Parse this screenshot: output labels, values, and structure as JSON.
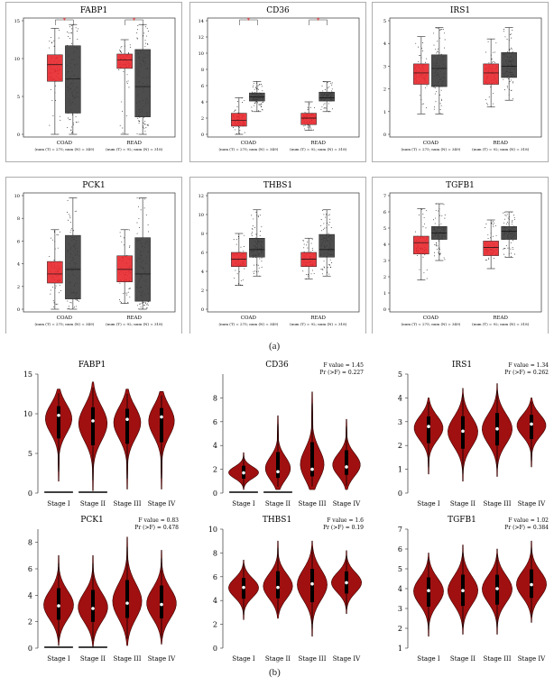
{
  "figure": {
    "label_a": "(a)",
    "label_b": "(b)"
  },
  "colors": {
    "tumor": "#e8262b",
    "normal": "#3a3a3a",
    "violin": "#a01010",
    "violin_edge": "#3a0000",
    "star": "#e8262b"
  },
  "chart_data": [
    {
      "type": "box",
      "title": "FABP1",
      "ylim": [
        0,
        15
      ],
      "yticks": [
        0,
        5,
        10,
        15
      ],
      "categories": [
        "COAD",
        "READ"
      ],
      "sublabels": [
        "(num (T) = 275; num (N) = 349)",
        "(num (T) = 92; num (N) = 318)"
      ],
      "significance": [
        true,
        true
      ],
      "series": [
        {
          "group": "T",
          "values": [
            [
              0,
              7,
              9.2,
              10.5,
              14
            ],
            [
              0,
              8.7,
              9.8,
              10.6,
              12.5
            ]
          ]
        },
        {
          "group": "N",
          "values": [
            [
              0,
              2.8,
              7.3,
              11.7,
              14.5
            ],
            [
              0,
              2.3,
              6.3,
              11.2,
              14.5
            ]
          ]
        }
      ]
    },
    {
      "type": "box",
      "title": "CD36",
      "ylim": [
        0,
        14
      ],
      "yticks": [
        0,
        2,
        4,
        6,
        8,
        10,
        12,
        14
      ],
      "categories": [
        "COAD",
        "READ"
      ],
      "sublabels": [
        "(num (T) = 275; num (N) = 349)",
        "(num (T) = 92; num (N) = 318)"
      ],
      "significance": [
        true,
        true
      ],
      "series": [
        {
          "group": "T",
          "values": [
            [
              0,
              1,
              1.7,
              2.6,
              4.5
            ],
            [
              0.5,
              1.2,
              2,
              2.6,
              4
            ]
          ]
        },
        {
          "group": "N",
          "values": [
            [
              2.8,
              4.1,
              4.6,
              5.1,
              6.5
            ],
            [
              2.8,
              4.1,
              4.5,
              5.2,
              6.5
            ]
          ]
        }
      ]
    },
    {
      "type": "box",
      "title": "IRS1",
      "ylim": [
        0,
        5
      ],
      "yticks": [
        0,
        1,
        2,
        3,
        4,
        5
      ],
      "categories": [
        "COAD",
        "READ"
      ],
      "sublabels": [
        "(num (T) = 275; num (N) = 349)",
        "(num (T) = 92; num (N) = 318)"
      ],
      "significance": [
        false,
        false
      ],
      "series": [
        {
          "group": "T",
          "values": [
            [
              0.9,
              2.2,
              2.7,
              3.1,
              4.3
            ],
            [
              1.2,
              2.2,
              2.7,
              3.1,
              4.2
            ]
          ]
        },
        {
          "group": "N",
          "values": [
            [
              0.9,
              2.1,
              2.9,
              3.5,
              4.7
            ],
            [
              1.5,
              2.5,
              3,
              3.6,
              4.7
            ]
          ]
        }
      ]
    },
    {
      "type": "box",
      "title": "PCK1",
      "ylim": [
        0,
        10
      ],
      "yticks": [
        0,
        2,
        4,
        6,
        8,
        10
      ],
      "categories": [
        "COAD",
        "READ"
      ],
      "sublabels": [
        "(num (T) = 275; num (N) = 349)",
        "(num (T) = 92; num (N) = 318)"
      ],
      "significance": [
        false,
        false
      ],
      "series": [
        {
          "group": "T",
          "values": [
            [
              0,
              2.3,
              3.1,
              4.2,
              7
            ],
            [
              0.5,
              2.4,
              3.5,
              4.7,
              7
            ]
          ]
        },
        {
          "group": "N",
          "values": [
            [
              0,
              0.9,
              3.5,
              6.5,
              9.8
            ],
            [
              0,
              0.7,
              3.1,
              6.3,
              9.8
            ]
          ]
        }
      ]
    },
    {
      "type": "box",
      "title": "THBS1",
      "ylim": [
        0,
        12
      ],
      "yticks": [
        0,
        2,
        4,
        6,
        8,
        10,
        12
      ],
      "categories": [
        "COAD",
        "READ"
      ],
      "sublabels": [
        "(num (T) = 275; num (N) = 349)",
        "(num (T) = 92; num (N) = 318)"
      ],
      "significance": [
        false,
        false
      ],
      "series": [
        {
          "group": "T",
          "values": [
            [
              2.5,
              4.5,
              5.3,
              6,
              8
            ],
            [
              3.2,
              4.5,
              5.3,
              6,
              7.5
            ]
          ]
        },
        {
          "group": "N",
          "values": [
            [
              3.5,
              5.5,
              6.3,
              7.5,
              10.5
            ],
            [
              3.5,
              5.5,
              6.3,
              7.9,
              10.5
            ]
          ]
        }
      ]
    },
    {
      "type": "box",
      "title": "TGFB1",
      "ylim": [
        0,
        7
      ],
      "yticks": [
        0,
        1,
        2,
        3,
        4,
        5,
        6,
        7
      ],
      "categories": [
        "COAD",
        "READ"
      ],
      "sublabels": [
        "(num (T) = 275; num (N) = 349)",
        "(num (T) = 92; num (N) = 318)"
      ],
      "significance": [
        false,
        false
      ],
      "series": [
        {
          "group": "T",
          "values": [
            [
              1.8,
              3.4,
              4.1,
              4.5,
              6.2
            ],
            [
              2.5,
              3.3,
              3.8,
              4.2,
              5.5
            ]
          ]
        },
        {
          "group": "N",
          "values": [
            [
              3,
              4.3,
              4.7,
              5.1,
              6.5
            ],
            [
              3.2,
              4.3,
              4.8,
              5.1,
              6
            ]
          ]
        }
      ]
    },
    {
      "type": "violin",
      "title": "FABP1",
      "ylim": [
        0,
        15
      ],
      "yticks": [
        0,
        5,
        10,
        15
      ],
      "categories": [
        "Stage I",
        "Stage II",
        "Stage III",
        "Stage IV"
      ],
      "annotation": [
        "",
        ""
      ],
      "stats": [
        [
          1.5,
          9.8,
          13.1
        ],
        [
          0.3,
          9.1,
          14
        ],
        [
          0.5,
          9.3,
          13.1
        ],
        [
          0.5,
          9.6,
          12.8
        ]
      ],
      "zero_line": [
        true,
        true,
        false,
        false
      ]
    },
    {
      "type": "violin",
      "title": "CD36",
      "ylim": [
        0,
        10
      ],
      "yticks": [
        0,
        2,
        4,
        6,
        8
      ],
      "categories": [
        "Stage I",
        "Stage II",
        "Stage III",
        "Stage IV"
      ],
      "annotation": [
        "F value = 1.45",
        "Pr (>F) = 0.227"
      ],
      "stats": [
        [
          0.3,
          1.7,
          3.4
        ],
        [
          0.3,
          1.8,
          6.5
        ],
        [
          0.3,
          2,
          8.5
        ],
        [
          0.3,
          2.2,
          6.2
        ]
      ],
      "zero_line": [
        true,
        true,
        false,
        false
      ]
    },
    {
      "type": "violin",
      "title": "IRS1",
      "ylim": [
        0,
        5
      ],
      "yticks": [
        0,
        1,
        2,
        3,
        4,
        5
      ],
      "categories": [
        "Stage I",
        "Stage II",
        "Stage III",
        "Stage IV"
      ],
      "annotation": [
        "F value = 1.34",
        "Pr (>F) = 0.262"
      ],
      "stats": [
        [
          0.8,
          2.8,
          4
        ],
        [
          0.5,
          2.6,
          4.4
        ],
        [
          0.7,
          2.7,
          4.6
        ],
        [
          1.1,
          2.9,
          4
        ]
      ],
      "zero_line": [
        false,
        false,
        false,
        false
      ]
    },
    {
      "type": "violin",
      "title": "PCK1",
      "ylim": [
        0,
        9
      ],
      "yticks": [
        0,
        2,
        4,
        6,
        8
      ],
      "categories": [
        "Stage I",
        "Stage II",
        "Stage III",
        "Stage IV"
      ],
      "annotation": [
        "F value = 0.83",
        "Pr (>F) = 0.478"
      ],
      "stats": [
        [
          0.2,
          3.2,
          7
        ],
        [
          0.1,
          3,
          7
        ],
        [
          0.2,
          3.4,
          8.4
        ],
        [
          0.3,
          3.3,
          7.4
        ]
      ],
      "zero_line": [
        true,
        true,
        false,
        false
      ]
    },
    {
      "type": "violin",
      "title": "THBS1",
      "ylim": [
        0,
        10
      ],
      "yticks": [
        0,
        2,
        4,
        6,
        8,
        10
      ],
      "categories": [
        "Stage I",
        "Stage II",
        "Stage III",
        "Stage IV"
      ],
      "annotation": [
        "F value = 1.6",
        "Pr (>F) = 0.19"
      ],
      "stats": [
        [
          2.4,
          5.1,
          7.4
        ],
        [
          2.5,
          5.1,
          9
        ],
        [
          1,
          5.4,
          9
        ],
        [
          2.9,
          5.5,
          8.2
        ]
      ],
      "zero_line": [
        false,
        false,
        false,
        false
      ]
    },
    {
      "type": "violin",
      "title": "TGFB1",
      "ylim": [
        1,
        7
      ],
      "yticks": [
        1,
        2,
        3,
        4,
        5,
        6,
        7
      ],
      "categories": [
        "Stage I",
        "Stage II",
        "Stage III",
        "Stage IV"
      ],
      "annotation": [
        "F value = 1.02",
        "Pr (>F) = 0.384"
      ],
      "stats": [
        [
          1.6,
          3.9,
          5.8
        ],
        [
          1.7,
          3.9,
          6.2
        ],
        [
          1.7,
          4,
          6
        ],
        [
          2.3,
          4.2,
          6.4
        ]
      ],
      "zero_line": [
        false,
        false,
        false,
        false
      ]
    }
  ]
}
